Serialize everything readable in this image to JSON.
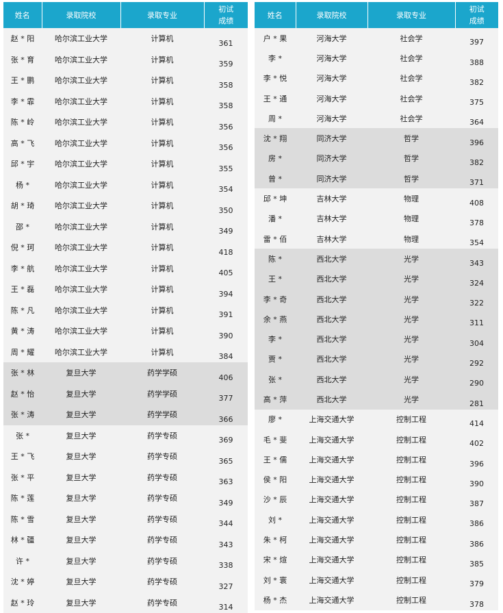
{
  "tables": [
    {
      "header": [
        "姓名",
        "录取院校",
        "录取专业",
        "初试成绩"
      ],
      "shaded_rows": [
        16,
        17,
        18
      ],
      "rows": [
        [
          "赵 * 阳",
          "哈尔滨工业大学",
          "计算机",
          "361"
        ],
        [
          "张 * 育",
          "哈尔滨工业大学",
          "计算机",
          "359"
        ],
        [
          "王 * 鹏",
          "哈尔滨工业大学",
          "计算机",
          "358"
        ],
        [
          "李 * 霏",
          "哈尔滨工业大学",
          "计算机",
          "358"
        ],
        [
          "陈 * 岭",
          "哈尔滨工业大学",
          "计算机",
          "356"
        ],
        [
          "高 * 飞",
          "哈尔滨工业大学",
          "计算机",
          "356"
        ],
        [
          "邱 * 宇",
          "哈尔滨工业大学",
          "计算机",
          "355"
        ],
        [
          "杨 *",
          "哈尔滨工业大学",
          "计算机",
          "354"
        ],
        [
          "胡 * 琦",
          "哈尔滨工业大学",
          "计算机",
          "350"
        ],
        [
          "邵 *",
          "哈尔滨工业大学",
          "计算机",
          "349"
        ],
        [
          "倪 * 珂",
          "哈尔滨工业大学",
          "计算机",
          "418"
        ],
        [
          "李 * 航",
          "哈尔滨工业大学",
          "计算机",
          "405"
        ],
        [
          "王 * 磊",
          "哈尔滨工业大学",
          "计算机",
          "394"
        ],
        [
          "陈 * 凡",
          "哈尔滨工业大学",
          "计算机",
          "391"
        ],
        [
          "黄 * 涛",
          "哈尔滨工业大学",
          "计算机",
          "390"
        ],
        [
          "周 * 耀",
          "哈尔滨工业大学",
          "计算机",
          "384"
        ],
        [
          "张 * 林",
          "复旦大学",
          "药学学硕",
          "406"
        ],
        [
          "赵 * 怡",
          "复旦大学",
          "药学学硕",
          "377"
        ],
        [
          "张 * 涛",
          "复旦大学",
          "药学学硕",
          "366"
        ],
        [
          "张 *",
          "复旦大学",
          "药学专硕",
          "369"
        ],
        [
          "王 * 飞",
          "复旦大学",
          "药学专硕",
          "365"
        ],
        [
          "张 * 平",
          "复旦大学",
          "药学专硕",
          "363"
        ],
        [
          "陈 * 莲",
          "复旦大学",
          "药学专硕",
          "349"
        ],
        [
          "陈 * 雪",
          "复旦大学",
          "药学专硕",
          "344"
        ],
        [
          "林 * 疆",
          "复旦大学",
          "药学专硕",
          "343"
        ],
        [
          "许 *",
          "复旦大学",
          "药学专硕",
          "338"
        ],
        [
          "沈 * 婷",
          "复旦大学",
          "药学专硕",
          "327"
        ],
        [
          "赵 * 玲",
          "复旦大学",
          "药学专硕",
          "314"
        ]
      ]
    },
    {
      "header": [
        "姓名",
        "录取院校",
        "录取专业",
        "初试成绩"
      ],
      "shaded_rows": [
        5,
        6,
        7,
        11,
        12,
        13,
        14,
        15,
        16,
        17,
        18
      ],
      "rows": [
        [
          "户 * 果",
          "河海大学",
          "社会学",
          "397"
        ],
        [
          "李 *",
          "河海大学",
          "社会学",
          "388"
        ],
        [
          "李 * 悦",
          "河海大学",
          "社会学",
          "382"
        ],
        [
          "王 * 通",
          "河海大学",
          "社会学",
          "375"
        ],
        [
          "周 *",
          "河海大学",
          "社会学",
          "364"
        ],
        [
          "沈 * 翔",
          "同济大学",
          "哲学",
          "396"
        ],
        [
          "房 *",
          "同济大学",
          "哲学",
          "382"
        ],
        [
          "曾 *",
          "同济大学",
          "哲学",
          "371"
        ],
        [
          "邱 * 坤",
          "吉林大学",
          "物理",
          "408"
        ],
        [
          "潘 *",
          "吉林大学",
          "物理",
          "378"
        ],
        [
          "雷 * 佰",
          "吉林大学",
          "物理",
          "354"
        ],
        [
          "陈 *",
          "西北大学",
          "光学",
          "343"
        ],
        [
          "王 *",
          "西北大学",
          "光学",
          "324"
        ],
        [
          "李 * 奇",
          "西北大学",
          "光学",
          "322"
        ],
        [
          "余 * 燕",
          "西北大学",
          "光学",
          "311"
        ],
        [
          "李 *",
          "西北大学",
          "光学",
          "304"
        ],
        [
          "贾 *",
          "西北大学",
          "光学",
          "292"
        ],
        [
          "张 *",
          "西北大学",
          "光学",
          "290"
        ],
        [
          "高 * 萍",
          "西北大学",
          "光学",
          "281"
        ],
        [
          "廖 *",
          "上海交通大学",
          "控制工程",
          "414"
        ],
        [
          "毛 * 斐",
          "上海交通大学",
          "控制工程",
          "402"
        ],
        [
          "王 * 儒",
          "上海交通大学",
          "控制工程",
          "396"
        ],
        [
          "侯 * 阳",
          "上海交通大学",
          "控制工程",
          "390"
        ],
        [
          "沙 * 辰",
          "上海交通大学",
          "控制工程",
          "387"
        ],
        [
          "刘 *",
          "上海交通大学",
          "控制工程",
          "386"
        ],
        [
          "朱 * 柯",
          "上海交通大学",
          "控制工程",
          "386"
        ],
        [
          "宋 * 煊",
          "上海交通大学",
          "控制工程",
          "385"
        ],
        [
          "刘 * 寰",
          "上海交通大学",
          "控制工程",
          "379"
        ],
        [
          "杨 * 杰",
          "上海交通大学",
          "控制工程",
          "378"
        ]
      ]
    }
  ]
}
